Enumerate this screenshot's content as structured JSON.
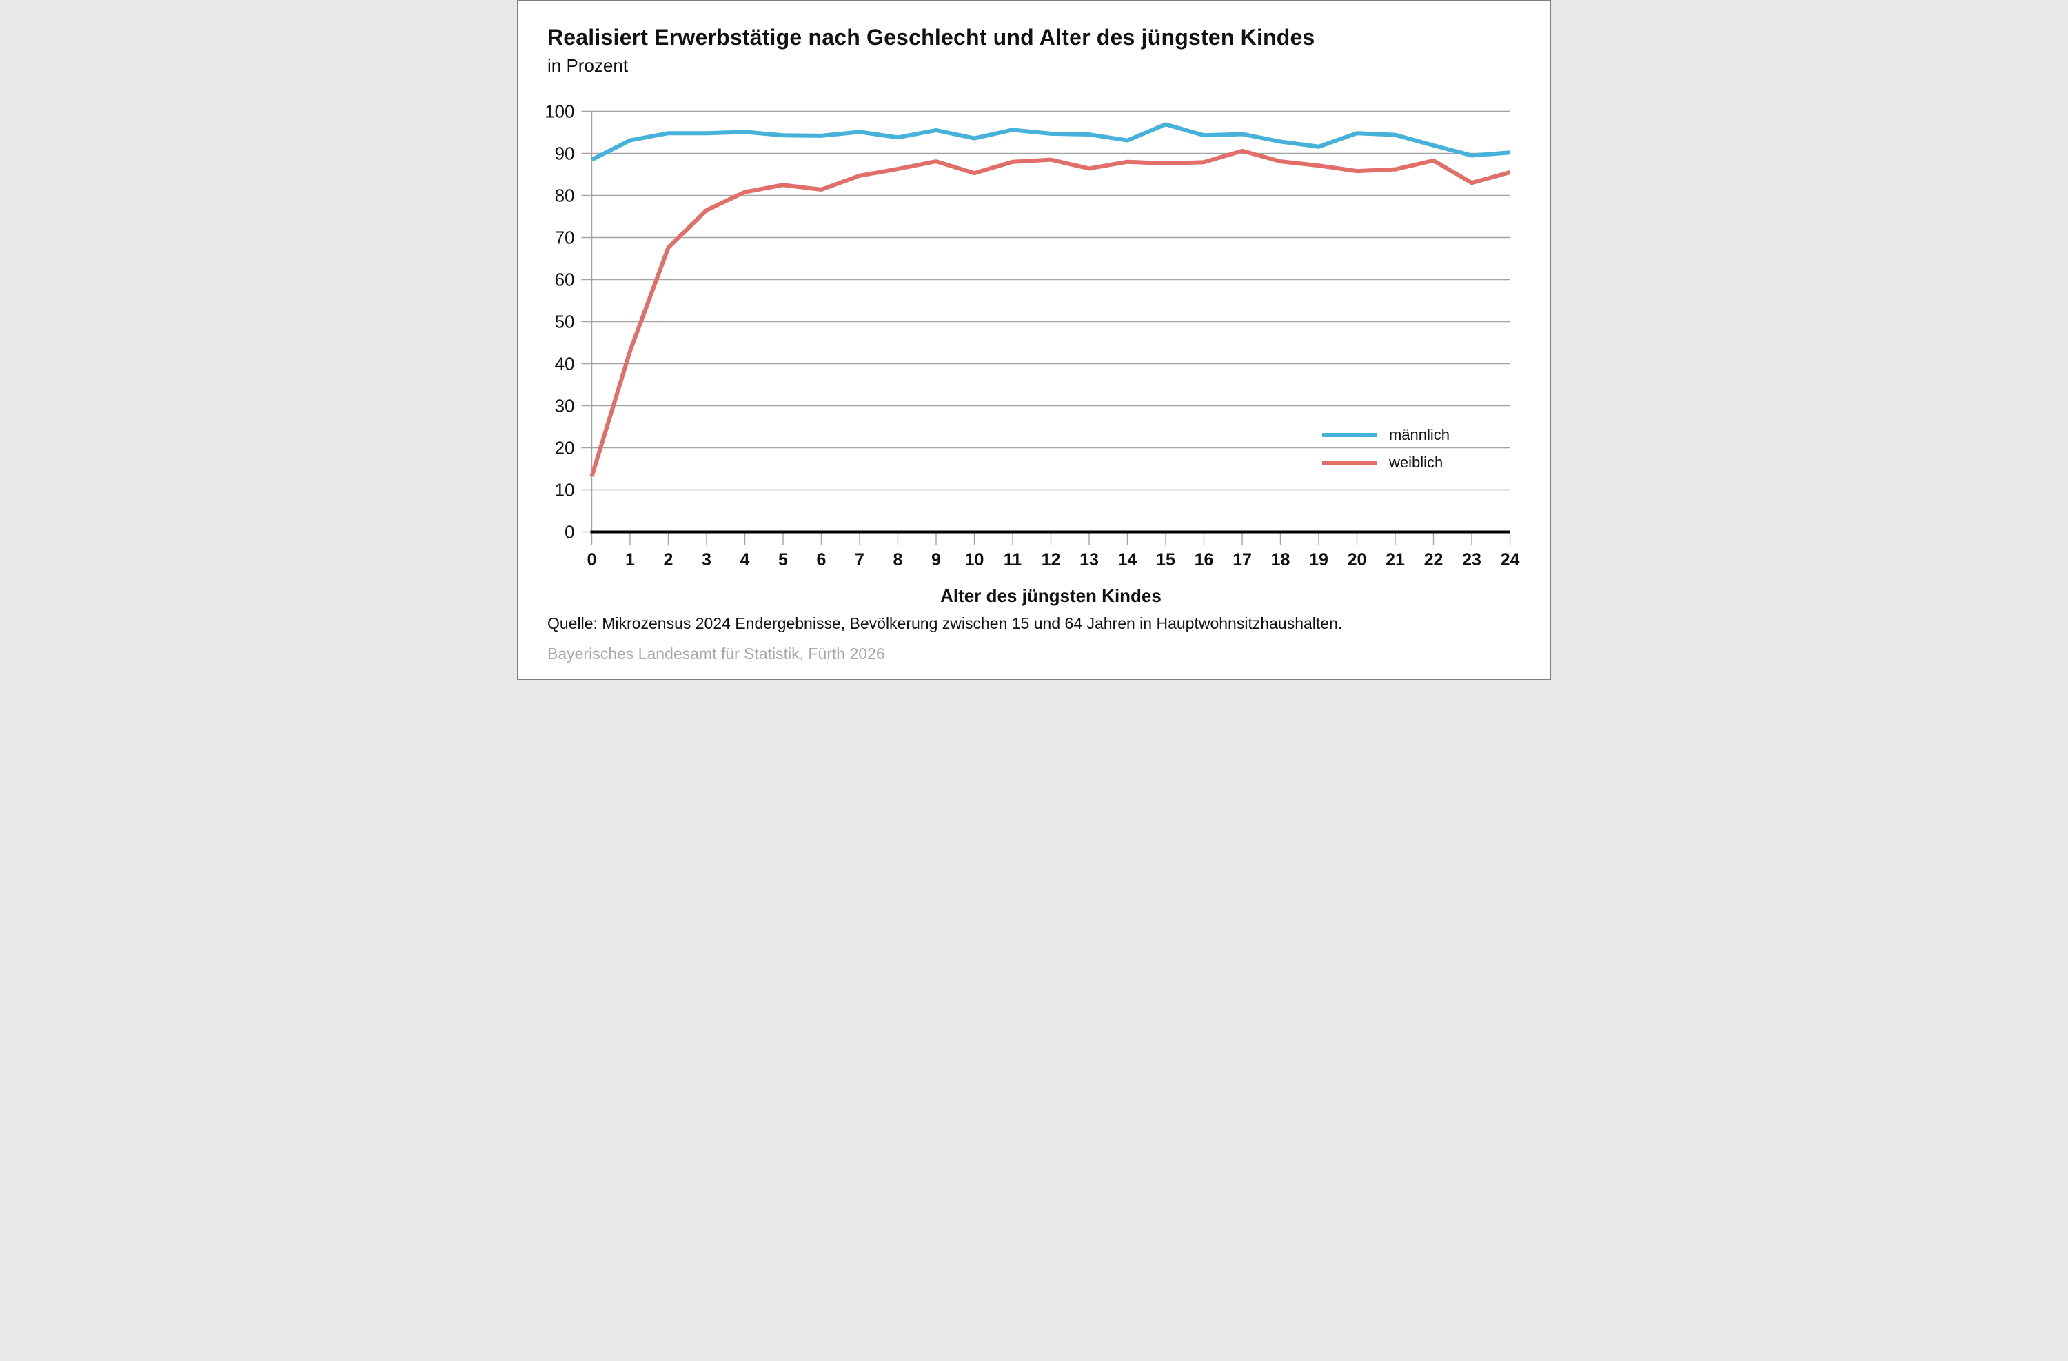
{
  "header": {
    "title": "Realisiert Erwerbstätige nach Geschlecht und Alter des jüngsten Kindes",
    "subtitle": "in Prozent"
  },
  "chart_data": {
    "type": "line",
    "x": [
      0,
      1,
      2,
      3,
      4,
      5,
      6,
      7,
      8,
      9,
      10,
      11,
      12,
      13,
      14,
      15,
      16,
      17,
      18,
      19,
      20,
      21,
      22,
      23,
      24
    ],
    "xlabel": "Alter des jüngsten Kindes",
    "ylabel": "",
    "ylim": [
      0,
      100
    ],
    "ytick_step": 10,
    "grid": true,
    "legend_position": "right-middle",
    "series": [
      {
        "name": "männlich",
        "color": "#46b1db",
        "values": [
          88.5,
          93.1,
          94.8,
          94.8,
          95.1,
          94.3,
          94.2,
          95.1,
          93.8,
          95.5,
          93.6,
          95.6,
          94.7,
          94.5,
          93.1,
          96.9,
          94.3,
          94.6,
          92.8,
          91.6,
          94.8,
          94.4,
          91.9,
          89.5,
          90.2
        ]
      },
      {
        "name": "weiblich",
        "color": "#e26e68",
        "values": [
          13.2,
          43.0,
          67.6,
          76.5,
          80.8,
          82.5,
          81.4,
          84.7,
          86.3,
          88.1,
          85.3,
          88.0,
          88.5,
          86.4,
          88.0,
          87.6,
          87.9,
          90.6,
          88.1,
          87.1,
          85.8,
          86.2,
          88.3,
          83.0,
          85.5
        ]
      }
    ]
  },
  "legend": {
    "items": [
      {
        "label": "männlich",
        "color": "#46b1db"
      },
      {
        "label": "weiblich",
        "color": "#e26e68"
      }
    ]
  },
  "footer": {
    "source": "Quelle: Mikrozensus 2024 Endergebnisse, Bevölkerung zwischen 15 und 64 Jahren in Hauptwohnsitzhaushalten.",
    "publisher": "Bayerisches Landesamt für Statistik, Fürth 2026"
  },
  "colors": {
    "background": "#ffffff",
    "border": "#7f7f7f",
    "grid": "#a3a3a3",
    "axis": "#000000",
    "tick_label": "#111111",
    "publisher_gray": "#a9a9a9"
  }
}
